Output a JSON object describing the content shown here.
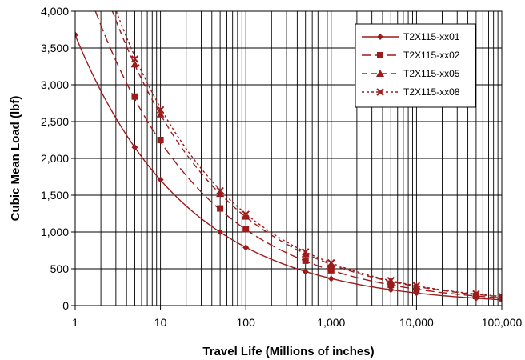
{
  "chart_data": {
    "type": "line",
    "x_scale": "log",
    "xlim": [
      1,
      100000
    ],
    "ylim": [
      0,
      4000
    ],
    "xlabel": "Travel Life (Millions of inches)",
    "ylabel": "Cubic Mean Load (lbf)",
    "x_tick_labels": [
      "1",
      "10",
      "100",
      "1,000",
      "10,000",
      "100,000"
    ],
    "y_tick_labels": [
      "0",
      "500",
      "1,000",
      "1,500",
      "2,000",
      "2,500",
      "3,000",
      "3,500",
      "4,000"
    ],
    "grid": true,
    "legend_position": "top-right",
    "line_color": "#9c1c1c",
    "series": [
      {
        "name": "T2X115-xx01",
        "marker": "diamond",
        "dash": "solid",
        "x": [
          1,
          5,
          10,
          50,
          100,
          500,
          1000,
          5000,
          10000,
          50000,
          100000
        ],
        "y": [
          3680,
          2150,
          1710,
          1000,
          790,
          460,
          365,
          215,
          170,
          100,
          80
        ]
      },
      {
        "name": "T2X115-xx02",
        "marker": "square",
        "dash": "long-dash",
        "x": [
          5,
          10,
          50,
          100,
          500,
          1000,
          5000,
          10000,
          50000,
          100000
        ],
        "y": [
          2840,
          2250,
          1320,
          1040,
          610,
          480,
          280,
          220,
          130,
          100
        ]
      },
      {
        "name": "T2X115-xx05",
        "marker": "triangle",
        "dash": "dash",
        "x": [
          5,
          10,
          50,
          100,
          500,
          1000,
          5000,
          10000,
          50000,
          100000
        ],
        "y": [
          3280,
          2600,
          1520,
          1210,
          700,
          560,
          330,
          260,
          150,
          120
        ]
      },
      {
        "name": "T2X115-xx08",
        "marker": "x",
        "dash": "dot",
        "x": [
          5,
          10,
          50,
          100,
          500,
          1000,
          5000,
          10000,
          50000,
          100000
        ],
        "y": [
          3350,
          2660,
          1560,
          1240,
          730,
          580,
          340,
          270,
          160,
          125
        ]
      }
    ]
  }
}
